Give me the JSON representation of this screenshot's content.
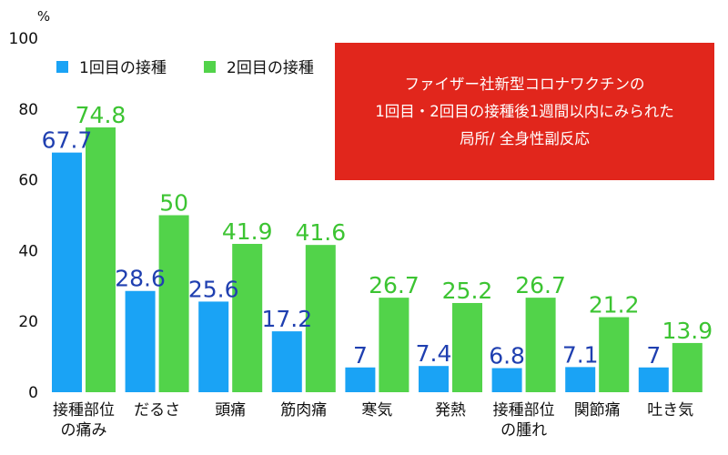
{
  "chart_data": {
    "type": "bar",
    "title_lines": [
      "ファイザー社新型コロナワクチンの",
      "1回目・2回目の接種後1週間以内にみられた",
      "局所/ 全身性副反応"
    ],
    "ylabel": "%",
    "ylim": [
      0,
      100
    ],
    "y_ticks": [
      0,
      20,
      40,
      60,
      80,
      100
    ],
    "grid": false,
    "legend_position": "top-left",
    "categories": [
      [
        "接種部位",
        "の痛み"
      ],
      [
        "だるさ"
      ],
      [
        "頭痛"
      ],
      [
        "筋肉痛"
      ],
      [
        "寒気"
      ],
      [
        "発熱"
      ],
      [
        "接種部位",
        "の腫れ"
      ],
      [
        "関節痛"
      ],
      [
        "吐き気"
      ]
    ],
    "series": [
      {
        "name": "1回目の接種",
        "color": "#1aa3f5",
        "label_color": "#1f3fb0",
        "values": [
          67.7,
          28.6,
          25.6,
          17.2,
          7,
          7.4,
          6.8,
          7.1,
          7
        ]
      },
      {
        "name": "2回目の接種",
        "color": "#52d34a",
        "label_color": "#3cc432",
        "values": [
          74.8,
          50,
          41.9,
          41.6,
          26.7,
          25.2,
          26.7,
          21.2,
          13.9
        ]
      }
    ],
    "title_box_color": "#e1261c"
  }
}
